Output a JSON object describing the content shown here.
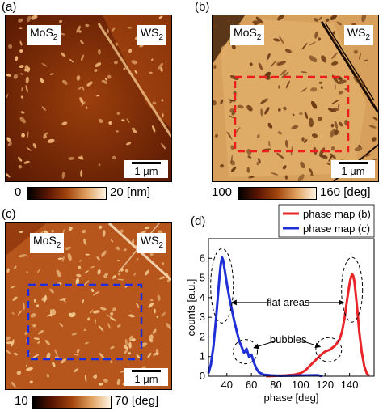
{
  "panels": [
    {
      "id": "a",
      "label": "(a)",
      "left_label": "MoS",
      "left_sub": "2",
      "right_label": "WS",
      "right_sub": "2",
      "scale_label": "1 μm",
      "cbar_min": "0",
      "cbar_max": "20 [nm]"
    },
    {
      "id": "b",
      "label": "(b)",
      "left_label": "MoS",
      "left_sub": "2",
      "right_label": "WS",
      "right_sub": "2",
      "scale_label": "1 μm",
      "cbar_min": "100",
      "cbar_max": "160 [deg]"
    },
    {
      "id": "c",
      "label": "(c)",
      "left_label": "MoS",
      "left_sub": "2",
      "right_label": "WS",
      "right_sub": "2",
      "scale_label": "1 μm",
      "cbar_min": "10",
      "cbar_max": "70 [deg]"
    }
  ],
  "chart_data": {
    "type": "line",
    "panel_label": "(d)",
    "xlabel": "phase [deg]",
    "ylabel": "counts [a.u.]",
    "xlim": [
      25,
      160
    ],
    "ylim": [
      0,
      7
    ],
    "xticks": [
      40,
      60,
      80,
      100,
      120,
      140
    ],
    "yticks": [
      0,
      1,
      2,
      3,
      4,
      5,
      6
    ],
    "legend_position": "top-right",
    "series": [
      {
        "name": "phase map (b)",
        "color": "#e8262a",
        "x": [
          72,
          80,
          88,
          95,
          100,
          104,
          108,
          112,
          116,
          118,
          120,
          122,
          124,
          126,
          128,
          130,
          132,
          134,
          136,
          138,
          140,
          141,
          142,
          143,
          144,
          146,
          148,
          150,
          152,
          154,
          156
        ],
        "y": [
          0.0,
          0.02,
          0.04,
          0.08,
          0.15,
          0.3,
          0.55,
          0.8,
          1.05,
          1.15,
          1.25,
          1.3,
          1.35,
          1.45,
          1.55,
          1.7,
          1.9,
          2.3,
          3.0,
          3.9,
          4.7,
          5.0,
          5.2,
          5.1,
          4.8,
          3.6,
          2.2,
          1.2,
          0.5,
          0.15,
          0.02
        ]
      },
      {
        "name": "phase map (c)",
        "color": "#1f2fd6",
        "x": [
          25,
          27,
          29,
          31,
          33,
          34,
          35,
          36,
          37,
          38,
          40,
          42,
          44,
          46,
          48,
          50,
          52,
          54,
          56,
          58,
          60,
          62,
          64,
          66,
          70,
          76,
          84,
          94,
          104,
          114,
          118
        ],
        "y": [
          0.15,
          0.6,
          1.5,
          2.8,
          4.3,
          5.1,
          5.7,
          6.05,
          5.9,
          5.5,
          4.7,
          4.0,
          3.4,
          2.8,
          2.3,
          1.8,
          1.5,
          1.2,
          1.4,
          1.0,
          1.1,
          0.7,
          0.4,
          0.2,
          0.08,
          0.04,
          0.02,
          0.03,
          0.04,
          0.05,
          0.0
        ]
      }
    ],
    "annotations": [
      {
        "text": "flat areas",
        "x": 90,
        "y": 3.75
      },
      {
        "text": "bubbles",
        "x": 90,
        "y": 1.85
      }
    ]
  }
}
